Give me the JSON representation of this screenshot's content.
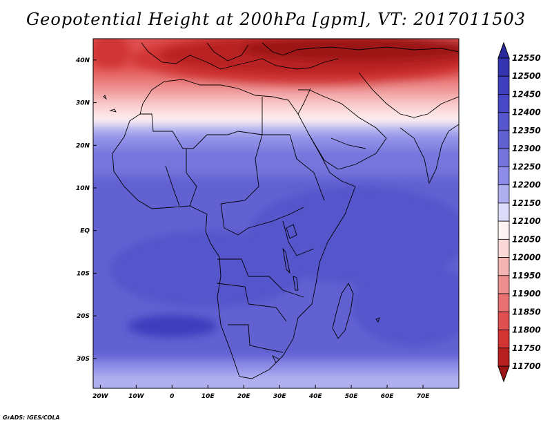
{
  "title": "Geopotential Height at 200hPa [gpm], VT: 2017011503",
  "footer": "GrADS: IGES/COLA",
  "map": {
    "lon_range": [
      -22,
      80
    ],
    "lat_range": [
      -37,
      45
    ],
    "lon_ticks": [
      {
        "value": -20,
        "label": "20W"
      },
      {
        "value": -10,
        "label": "10W"
      },
      {
        "value": 0,
        "label": "0"
      },
      {
        "value": 10,
        "label": "10E"
      },
      {
        "value": 20,
        "label": "20E"
      },
      {
        "value": 30,
        "label": "30E"
      },
      {
        "value": 40,
        "label": "40E"
      },
      {
        "value": 50,
        "label": "50E"
      },
      {
        "value": 60,
        "label": "60E"
      },
      {
        "value": 70,
        "label": "70E"
      }
    ],
    "lat_ticks": [
      {
        "value": 40,
        "label": "40N"
      },
      {
        "value": 30,
        "label": "30N"
      },
      {
        "value": 20,
        "label": "20N"
      },
      {
        "value": 10,
        "label": "10N"
      },
      {
        "value": 0,
        "label": "EQ"
      },
      {
        "value": -10,
        "label": "10S"
      },
      {
        "value": -20,
        "label": "20S"
      },
      {
        "value": -30,
        "label": "30S"
      }
    ]
  },
  "colorbar": {
    "levels": [
      "12550",
      "12500",
      "12450",
      "12400",
      "12350",
      "12300",
      "12250",
      "12200",
      "12150",
      "12100",
      "12050",
      "12000",
      "11950",
      "11900",
      "11850",
      "11800",
      "11750",
      "11700"
    ],
    "colors": [
      "#2a2a9e",
      "#3434b0",
      "#3e3ebe",
      "#4848c6",
      "#5555cc",
      "#6161d2",
      "#7474dc",
      "#8c8ce6",
      "#b0b0f0",
      "#dcdcfa",
      "#fff2f2",
      "#fbd8d8",
      "#f5b4b4",
      "#ee9090",
      "#e87070",
      "#e05050",
      "#d23434",
      "#b82020",
      "#9c1414"
    ]
  }
}
